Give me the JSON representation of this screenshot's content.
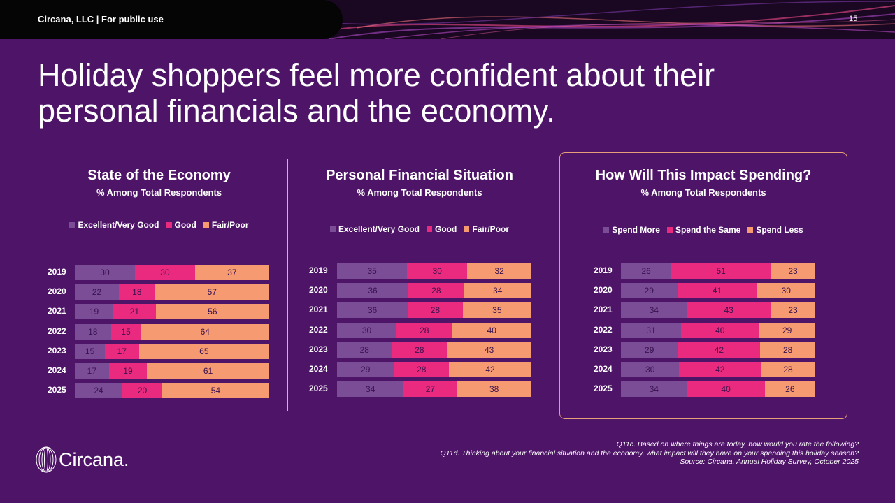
{
  "header": {
    "brand_label": "Circana, LLC |  For public use",
    "page_number": "15"
  },
  "title": "Holiday shoppers feel more confident about their personal financials and the economy.",
  "colors": {
    "background": "#4e1468",
    "series": [
      "#7a4d96",
      "#ea2a7e",
      "#f69a72"
    ],
    "highlight_border": "#e7a07a"
  },
  "chart_data": [
    {
      "type": "bar",
      "stacked": true,
      "orientation": "horizontal",
      "title": "State of the Economy",
      "subtitle": "% Among Total Respondents",
      "categories": [
        "2019",
        "2020",
        "2021",
        "2022",
        "2023",
        "2024",
        "2025"
      ],
      "series": [
        {
          "name": "Excellent/Very Good",
          "values": [
            30,
            22,
            19,
            18,
            15,
            17,
            24
          ]
        },
        {
          "name": "Good",
          "values": [
            30,
            18,
            21,
            15,
            17,
            19,
            20
          ]
        },
        {
          "name": "Fair/Poor",
          "values": [
            37,
            57,
            56,
            64,
            65,
            61,
            54
          ]
        }
      ],
      "legend_position": "top"
    },
    {
      "type": "bar",
      "stacked": true,
      "orientation": "horizontal",
      "title": "Personal Financial Situation",
      "subtitle": "% Among Total Respondents",
      "categories": [
        "2019",
        "2020",
        "2021",
        "2022",
        "2023",
        "2024",
        "2025"
      ],
      "series": [
        {
          "name": "Excellent/Very Good",
          "values": [
            35,
            36,
            36,
            30,
            28,
            29,
            34
          ]
        },
        {
          "name": "Good",
          "values": [
            30,
            28,
            28,
            28,
            28,
            28,
            27
          ]
        },
        {
          "name": "Fair/Poor",
          "values": [
            32,
            34,
            35,
            40,
            43,
            42,
            38
          ]
        }
      ],
      "legend_position": "top"
    },
    {
      "type": "bar",
      "stacked": true,
      "orientation": "horizontal",
      "title": "How Will This Impact Spending?",
      "subtitle": "% Among Total Respondents",
      "categories": [
        "2019",
        "2020",
        "2021",
        "2022",
        "2023",
        "2024",
        "2025"
      ],
      "series": [
        {
          "name": "Spend More",
          "values": [
            26,
            29,
            34,
            31,
            29,
            30,
            34
          ]
        },
        {
          "name": "Spend the Same",
          "values": [
            51,
            41,
            43,
            40,
            42,
            42,
            40
          ]
        },
        {
          "name": "Spend Less",
          "values": [
            23,
            30,
            23,
            29,
            28,
            28,
            26
          ]
        }
      ],
      "legend_position": "top"
    }
  ],
  "footnotes": [
    "Q11c. Based on where things are today, how would you rate the following?",
    "Q11d. Thinking about your financial situation and the economy, what impact will they have on your spending this holiday season?",
    "Source: Circana, Annual Holiday Survey, October 2025"
  ],
  "logo": {
    "text": "Circana."
  }
}
